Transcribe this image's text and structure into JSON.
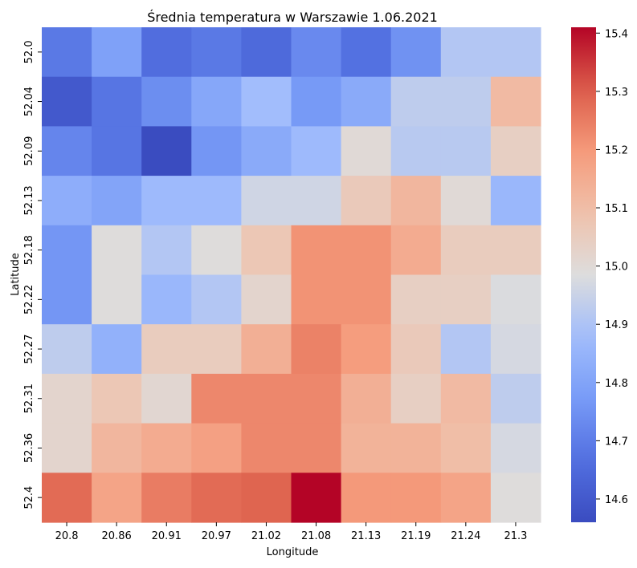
{
  "chart_data": {
    "type": "heatmap",
    "title": "Średnia temperatura w Warszawie 1.06.2021",
    "xlabel": "Longitude",
    "ylabel": "Latitude",
    "x_categories": [
      "20.8",
      "20.86",
      "20.91",
      "20.97",
      "21.02",
      "21.08",
      "21.13",
      "21.19",
      "21.24",
      "21.3"
    ],
    "y_categories": [
      "52.0",
      "52.04",
      "52.09",
      "52.13",
      "52.18",
      "52.22",
      "52.27",
      "52.31",
      "52.36",
      "52.4"
    ],
    "values": [
      [
        14.69,
        14.79,
        14.66,
        14.69,
        14.65,
        14.73,
        14.67,
        14.75,
        14.91,
        14.91
      ],
      [
        14.6,
        14.68,
        14.74,
        14.81,
        14.88,
        14.77,
        14.82,
        14.93,
        14.93,
        15.11
      ],
      [
        14.72,
        14.68,
        14.56,
        14.76,
        14.82,
        14.87,
        15.0,
        14.92,
        14.92,
        15.04
      ],
      [
        14.83,
        14.8,
        14.87,
        14.87,
        14.96,
        14.96,
        15.06,
        15.12,
        15.0,
        14.86
      ],
      [
        14.76,
        14.99,
        14.91,
        14.99,
        15.07,
        15.21,
        15.21,
        15.15,
        15.05,
        15.05
      ],
      [
        14.76,
        14.99,
        14.86,
        14.91,
        15.02,
        15.21,
        15.21,
        15.04,
        15.04,
        14.98
      ],
      [
        14.93,
        14.84,
        15.05,
        15.05,
        15.14,
        15.24,
        15.19,
        15.06,
        14.91,
        14.97
      ],
      [
        15.02,
        15.07,
        15.01,
        15.23,
        15.23,
        15.23,
        15.14,
        15.04,
        15.11,
        14.93
      ],
      [
        15.02,
        15.12,
        15.15,
        15.18,
        15.23,
        15.23,
        15.13,
        15.13,
        15.1,
        14.97
      ],
      [
        15.28,
        15.17,
        15.25,
        15.28,
        15.29,
        15.41,
        15.2,
        15.2,
        15.17,
        14.99
      ]
    ],
    "colormap": "coolwarm",
    "vmin": 14.56,
    "vmax": 15.41,
    "colorbar_ticks": [
      14.6,
      14.7,
      14.8,
      14.9,
      15.0,
      15.1,
      15.2,
      15.3,
      15.4
    ],
    "colorbar_tick_labels": [
      "14.6",
      "14.7",
      "14.8",
      "14.9",
      "15.0",
      "15.1",
      "15.2",
      "15.3",
      "15.4"
    ]
  }
}
